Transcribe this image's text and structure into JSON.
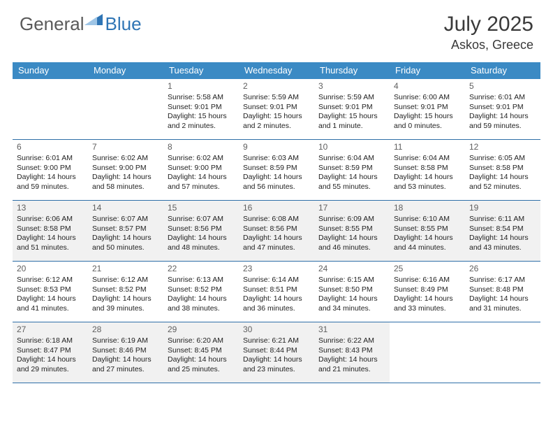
{
  "logo": {
    "part1": "General",
    "part2": "Blue"
  },
  "title": "July 2025",
  "location": "Askos, Greece",
  "colors": {
    "header_bg": "#3b8ac4",
    "header_text": "#ffffff",
    "shaded_cell": "#f1f1f1",
    "border": "#2f6fa8",
    "logo_gray": "#5a5a5a",
    "logo_blue": "#2f75b5"
  },
  "day_names": [
    "Sunday",
    "Monday",
    "Tuesday",
    "Wednesday",
    "Thursday",
    "Friday",
    "Saturday"
  ],
  "weeks": [
    [
      {
        "empty": true
      },
      {
        "empty": true
      },
      {
        "day": 1,
        "sunrise": "5:58 AM",
        "sunset": "9:01 PM",
        "daylight": "15 hours and 2 minutes."
      },
      {
        "day": 2,
        "sunrise": "5:59 AM",
        "sunset": "9:01 PM",
        "daylight": "15 hours and 2 minutes."
      },
      {
        "day": 3,
        "sunrise": "5:59 AM",
        "sunset": "9:01 PM",
        "daylight": "15 hours and 1 minute."
      },
      {
        "day": 4,
        "sunrise": "6:00 AM",
        "sunset": "9:01 PM",
        "daylight": "15 hours and 0 minutes."
      },
      {
        "day": 5,
        "sunrise": "6:01 AM",
        "sunset": "9:01 PM",
        "daylight": "14 hours and 59 minutes."
      }
    ],
    [
      {
        "day": 6,
        "sunrise": "6:01 AM",
        "sunset": "9:00 PM",
        "daylight": "14 hours and 59 minutes."
      },
      {
        "day": 7,
        "sunrise": "6:02 AM",
        "sunset": "9:00 PM",
        "daylight": "14 hours and 58 minutes."
      },
      {
        "day": 8,
        "sunrise": "6:02 AM",
        "sunset": "9:00 PM",
        "daylight": "14 hours and 57 minutes."
      },
      {
        "day": 9,
        "sunrise": "6:03 AM",
        "sunset": "8:59 PM",
        "daylight": "14 hours and 56 minutes."
      },
      {
        "day": 10,
        "sunrise": "6:04 AM",
        "sunset": "8:59 PM",
        "daylight": "14 hours and 55 minutes."
      },
      {
        "day": 11,
        "sunrise": "6:04 AM",
        "sunset": "8:58 PM",
        "daylight": "14 hours and 53 minutes."
      },
      {
        "day": 12,
        "sunrise": "6:05 AM",
        "sunset": "8:58 PM",
        "daylight": "14 hours and 52 minutes."
      }
    ],
    [
      {
        "day": 13,
        "shaded": true,
        "sunrise": "6:06 AM",
        "sunset": "8:58 PM",
        "daylight": "14 hours and 51 minutes."
      },
      {
        "day": 14,
        "shaded": true,
        "sunrise": "6:07 AM",
        "sunset": "8:57 PM",
        "daylight": "14 hours and 50 minutes."
      },
      {
        "day": 15,
        "shaded": true,
        "sunrise": "6:07 AM",
        "sunset": "8:56 PM",
        "daylight": "14 hours and 48 minutes."
      },
      {
        "day": 16,
        "shaded": true,
        "sunrise": "6:08 AM",
        "sunset": "8:56 PM",
        "daylight": "14 hours and 47 minutes."
      },
      {
        "day": 17,
        "shaded": true,
        "sunrise": "6:09 AM",
        "sunset": "8:55 PM",
        "daylight": "14 hours and 46 minutes."
      },
      {
        "day": 18,
        "shaded": true,
        "sunrise": "6:10 AM",
        "sunset": "8:55 PM",
        "daylight": "14 hours and 44 minutes."
      },
      {
        "day": 19,
        "shaded": true,
        "sunrise": "6:11 AM",
        "sunset": "8:54 PM",
        "daylight": "14 hours and 43 minutes."
      }
    ],
    [
      {
        "day": 20,
        "sunrise": "6:12 AM",
        "sunset": "8:53 PM",
        "daylight": "14 hours and 41 minutes."
      },
      {
        "day": 21,
        "sunrise": "6:12 AM",
        "sunset": "8:52 PM",
        "daylight": "14 hours and 39 minutes."
      },
      {
        "day": 22,
        "sunrise": "6:13 AM",
        "sunset": "8:52 PM",
        "daylight": "14 hours and 38 minutes."
      },
      {
        "day": 23,
        "sunrise": "6:14 AM",
        "sunset": "8:51 PM",
        "daylight": "14 hours and 36 minutes."
      },
      {
        "day": 24,
        "sunrise": "6:15 AM",
        "sunset": "8:50 PM",
        "daylight": "14 hours and 34 minutes."
      },
      {
        "day": 25,
        "sunrise": "6:16 AM",
        "sunset": "8:49 PM",
        "daylight": "14 hours and 33 minutes."
      },
      {
        "day": 26,
        "sunrise": "6:17 AM",
        "sunset": "8:48 PM",
        "daylight": "14 hours and 31 minutes."
      }
    ],
    [
      {
        "day": 27,
        "shaded": true,
        "sunrise": "6:18 AM",
        "sunset": "8:47 PM",
        "daylight": "14 hours and 29 minutes."
      },
      {
        "day": 28,
        "shaded": true,
        "sunrise": "6:19 AM",
        "sunset": "8:46 PM",
        "daylight": "14 hours and 27 minutes."
      },
      {
        "day": 29,
        "shaded": true,
        "sunrise": "6:20 AM",
        "sunset": "8:45 PM",
        "daylight": "14 hours and 25 minutes."
      },
      {
        "day": 30,
        "shaded": true,
        "sunrise": "6:21 AM",
        "sunset": "8:44 PM",
        "daylight": "14 hours and 23 minutes."
      },
      {
        "day": 31,
        "shaded": true,
        "sunrise": "6:22 AM",
        "sunset": "8:43 PM",
        "daylight": "14 hours and 21 minutes."
      },
      {
        "empty": true
      },
      {
        "empty": true
      }
    ]
  ]
}
